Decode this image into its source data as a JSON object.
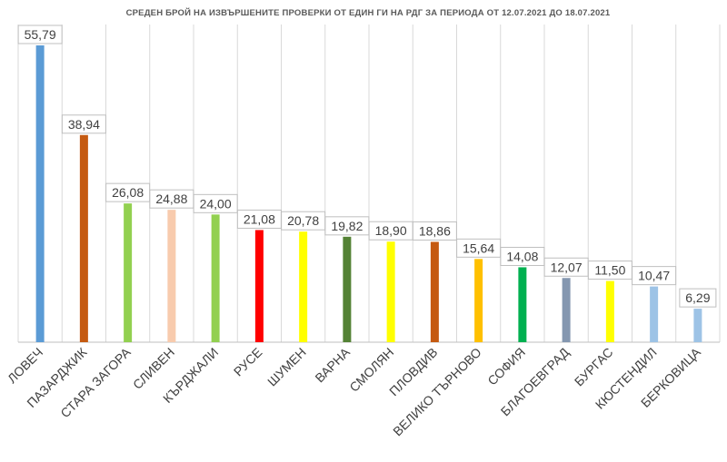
{
  "chart_data": {
    "type": "bar",
    "title": "СРЕДЕН БРОЙ НА ИЗВЪРШЕНИТЕ ПРОВЕРКИ ОТ ЕДИН ГИ НА РДГ ЗА ПЕРИОДА ОТ 12.07.2021 ДО 18.07.2021",
    "categories": [
      "ЛОВЕЧ",
      "ПАЗАРДЖИК",
      "СТАРА ЗАГОРА",
      "СЛИВЕН",
      "КЪРДЖАЛИ",
      "РУСЕ",
      "ШУМЕН",
      "ВАРНА",
      "СМОЛЯН",
      "ПЛОВДИВ",
      "ВЕЛИКО ТЪРНОВО",
      "СОФИЯ",
      "БЛАГОЕВГРАД",
      "БУРГАС",
      "КЮСТЕНДИЛ",
      "БЕРКОВИЦА"
    ],
    "values": [
      55.79,
      38.94,
      26.08,
      24.88,
      24.0,
      21.08,
      20.78,
      19.82,
      18.9,
      18.86,
      15.64,
      14.08,
      12.07,
      11.5,
      10.47,
      6.29
    ],
    "value_labels": [
      "55,79",
      "38,94",
      "26,08",
      "24,88",
      "24,00",
      "21,08",
      "20,78",
      "19,82",
      "18,90",
      "18,86",
      "15,64",
      "14,08",
      "12,07",
      "11,50",
      "10,47",
      "6,29"
    ],
    "colors": [
      "#5B9BD5",
      "#C55A11",
      "#92D050",
      "#F8CBAD",
      "#92D050",
      "#FF0000",
      "#FFFF00",
      "#548235",
      "#FFFF00",
      "#C55A11",
      "#FFC000",
      "#00B050",
      "#8497B0",
      "#FFFF00",
      "#9DC3E6",
      "#9DC3E6"
    ],
    "ylim": [
      0,
      58
    ],
    "grid": "vertical",
    "legend": "none",
    "xlabel": "",
    "ylabel": ""
  }
}
